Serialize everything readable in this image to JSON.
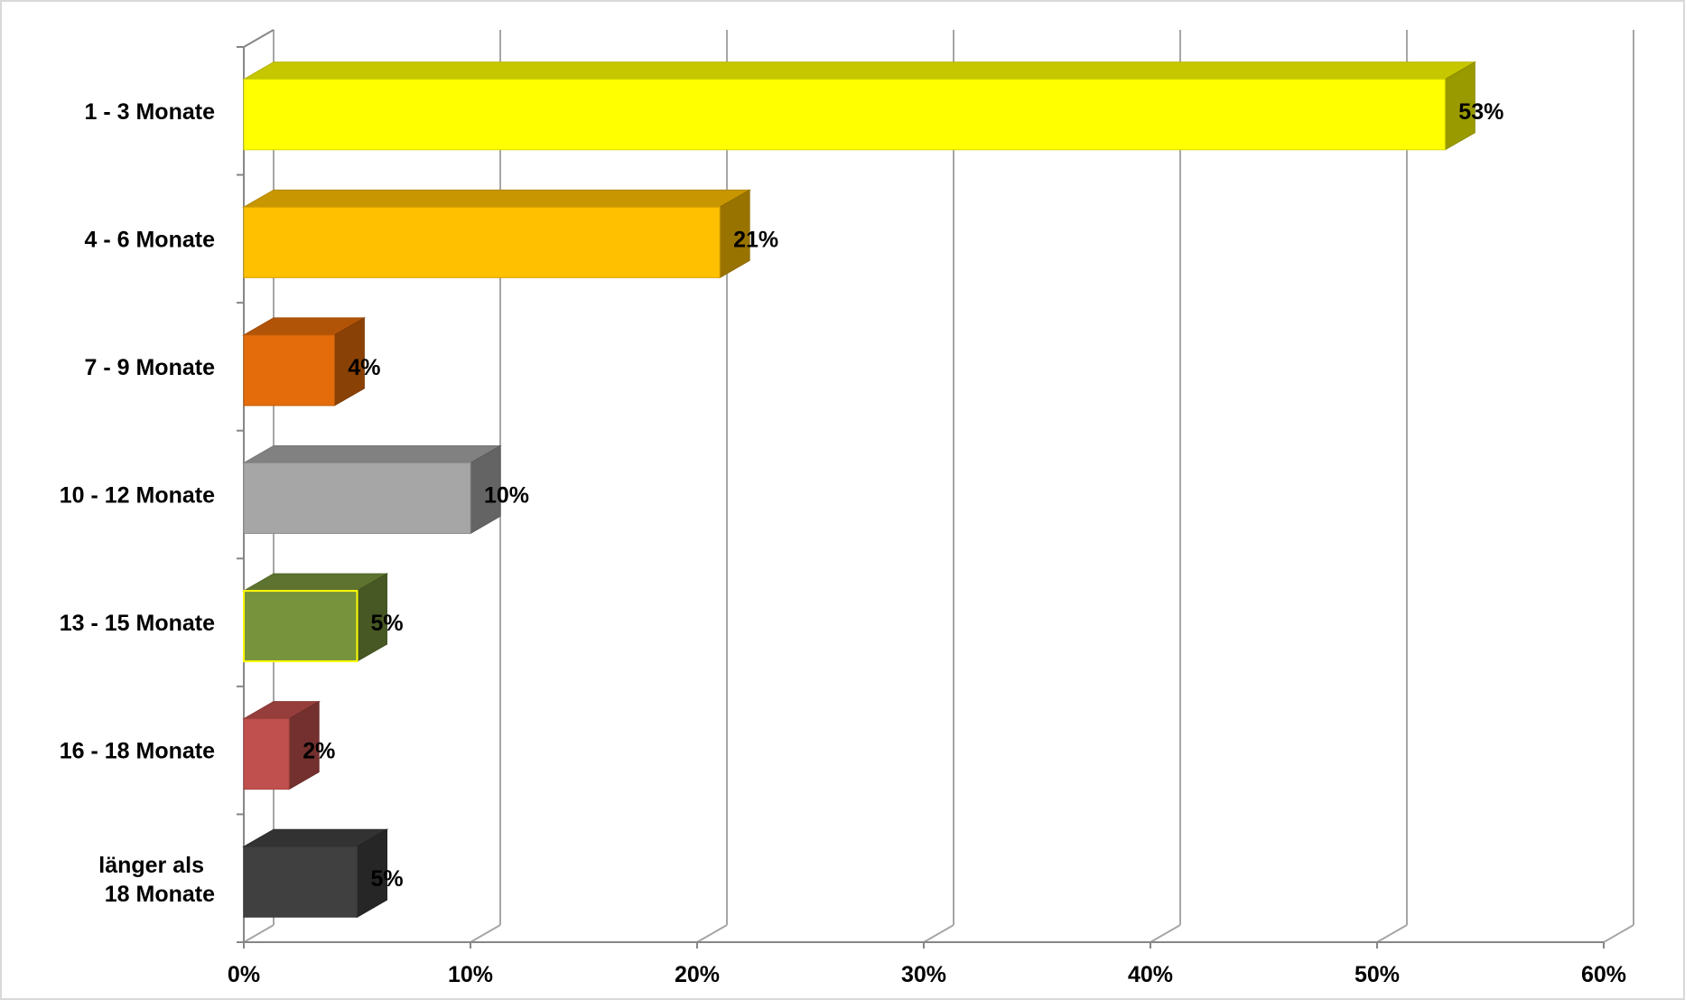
{
  "chart_data": {
    "type": "bar",
    "orientation": "horizontal",
    "style": "3d",
    "title": "",
    "xlabel": "",
    "ylabel": "",
    "categories": [
      "1 - 3 Monate",
      "4 - 6 Monate",
      "7 - 9 Monate",
      "10 - 12 Monate",
      "13 - 15 Monate",
      "16 - 18 Monate",
      "länger als 18 Monate"
    ],
    "category_label_lines": [
      [
        "1 - 3 Monate"
      ],
      [
        "4 - 6 Monate"
      ],
      [
        "7 - 9 Monate"
      ],
      [
        "10 - 12 Monate"
      ],
      [
        "13 - 15 Monate"
      ],
      [
        "16 - 18 Monate"
      ],
      [
        "länger als",
        "18 Monate"
      ]
    ],
    "values": [
      53,
      21,
      4,
      10,
      5,
      2,
      5
    ],
    "data_labels": [
      "53%",
      "21%",
      "4%",
      "10%",
      "5%",
      "2%",
      "5%"
    ],
    "colors": [
      "#FFFF00",
      "#FFC000",
      "#E46C0A",
      "#A6A6A6",
      "#77933C",
      "#C0504D",
      "#404040"
    ],
    "xlim": [
      0,
      60
    ],
    "ticks": [
      0,
      10,
      20,
      30,
      40,
      50,
      60
    ],
    "tick_labels": [
      "0%",
      "10%",
      "20%",
      "30%",
      "40%",
      "50%",
      "60%"
    ],
    "grid": true,
    "legend": "none"
  }
}
